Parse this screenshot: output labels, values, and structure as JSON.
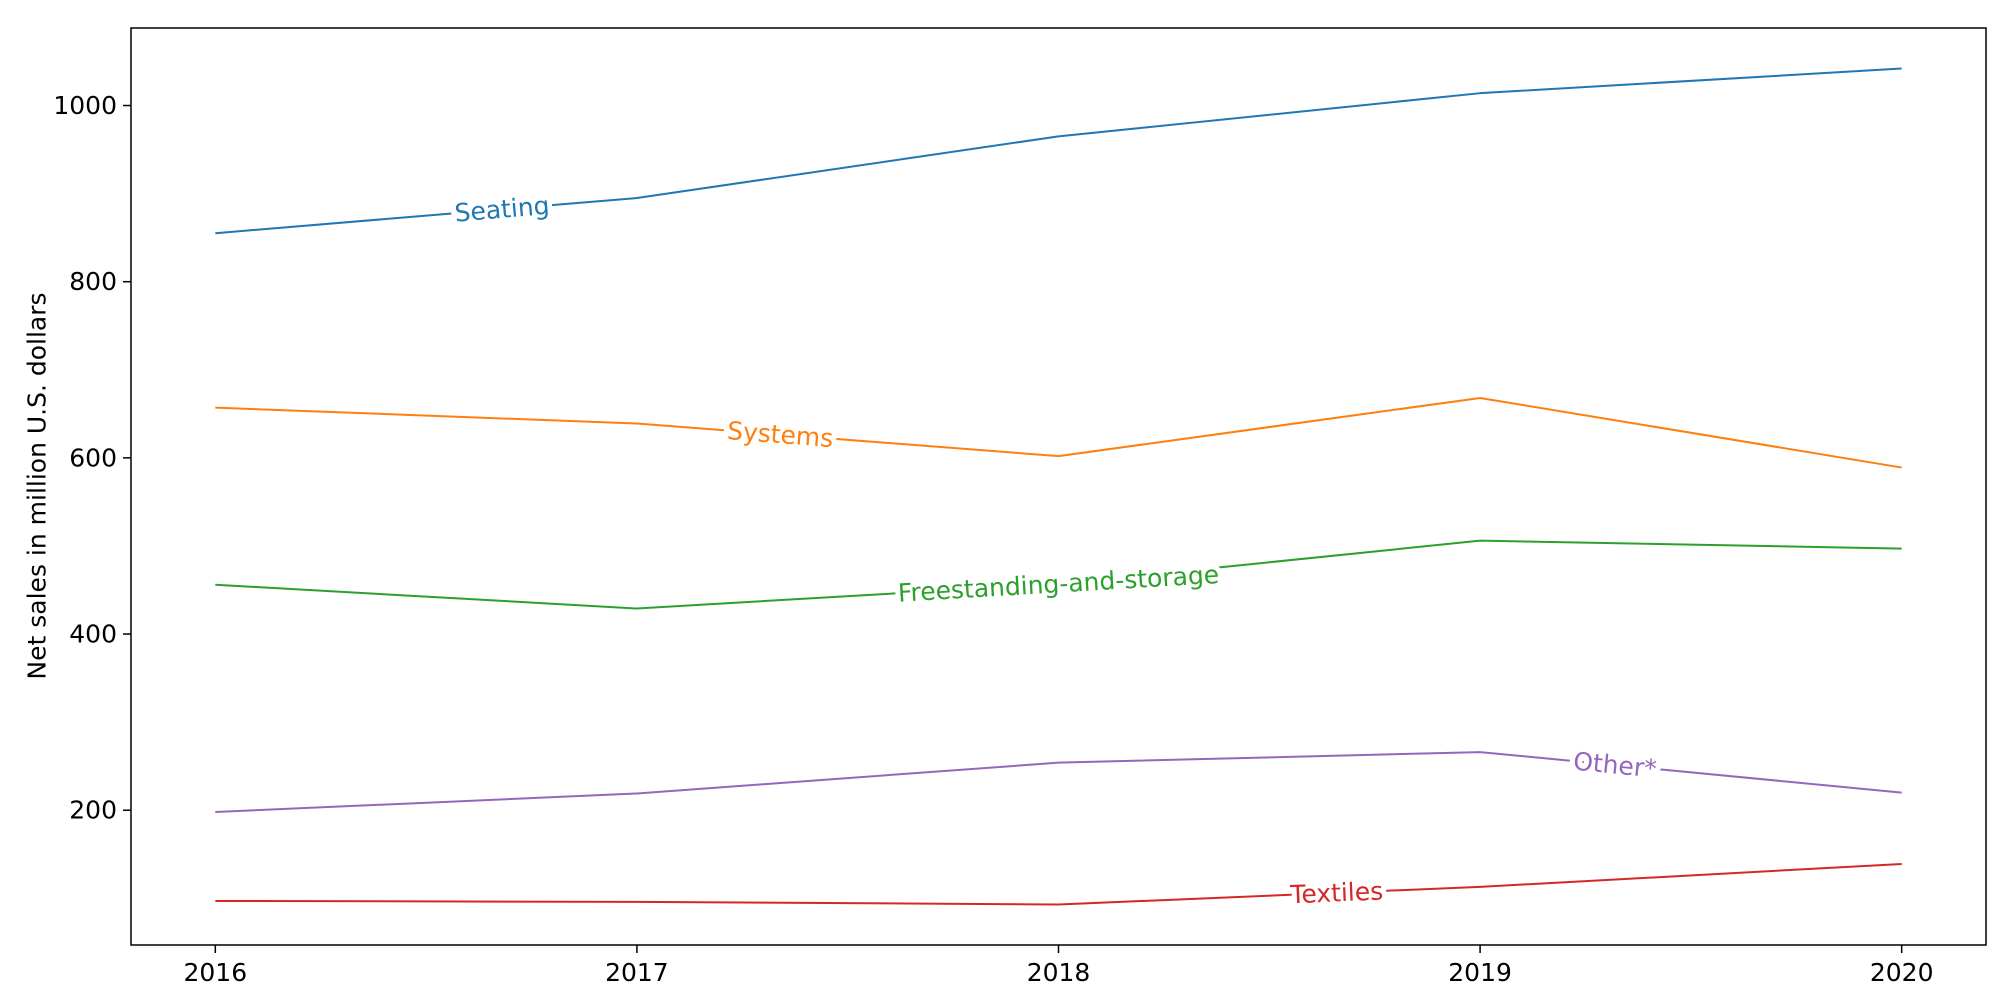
{
  "chart_data": {
    "type": "line",
    "title": "",
    "xlabel": "",
    "ylabel": "Net sales in million U.S. dollars",
    "x": [
      2016,
      2017,
      2018,
      2019,
      2020
    ],
    "x_tick_labels": [
      "2016",
      "2017",
      "2018",
      "2019",
      "2020"
    ],
    "xlim": [
      2015.8,
      2020.2
    ],
    "ylim": [
      47,
      1088
    ],
    "y_ticks": [
      200,
      400,
      600,
      800,
      1000
    ],
    "y_tick_labels": [
      "200",
      "400",
      "600",
      "800",
      "1000"
    ],
    "grid": false,
    "legend": "none (series labels drawn inline on lines)",
    "series": [
      {
        "name": "Seating",
        "color": "#1f77b4",
        "values": [
          855,
          895,
          965,
          1014,
          1042
        ],
        "label_at_x": 2016.68
      },
      {
        "name": "Systems",
        "color": "#ff7f0e",
        "values": [
          657,
          639,
          602,
          668,
          589
        ],
        "label_at_x": 2017.34
      },
      {
        "name": "Freestanding-and-storage",
        "color": "#2ca02c",
        "values": [
          456,
          429,
          457,
          506,
          497
        ],
        "label_at_x": 2018.0
      },
      {
        "name": "Other*",
        "color": "#9467bd",
        "values": [
          198,
          219,
          254,
          266,
          220
        ],
        "label_at_x": 2019.32
      },
      {
        "name": "Textiles",
        "color": "#d62728",
        "values": [
          97,
          96,
          93,
          113,
          139
        ],
        "label_at_x": 2018.66
      }
    ]
  }
}
